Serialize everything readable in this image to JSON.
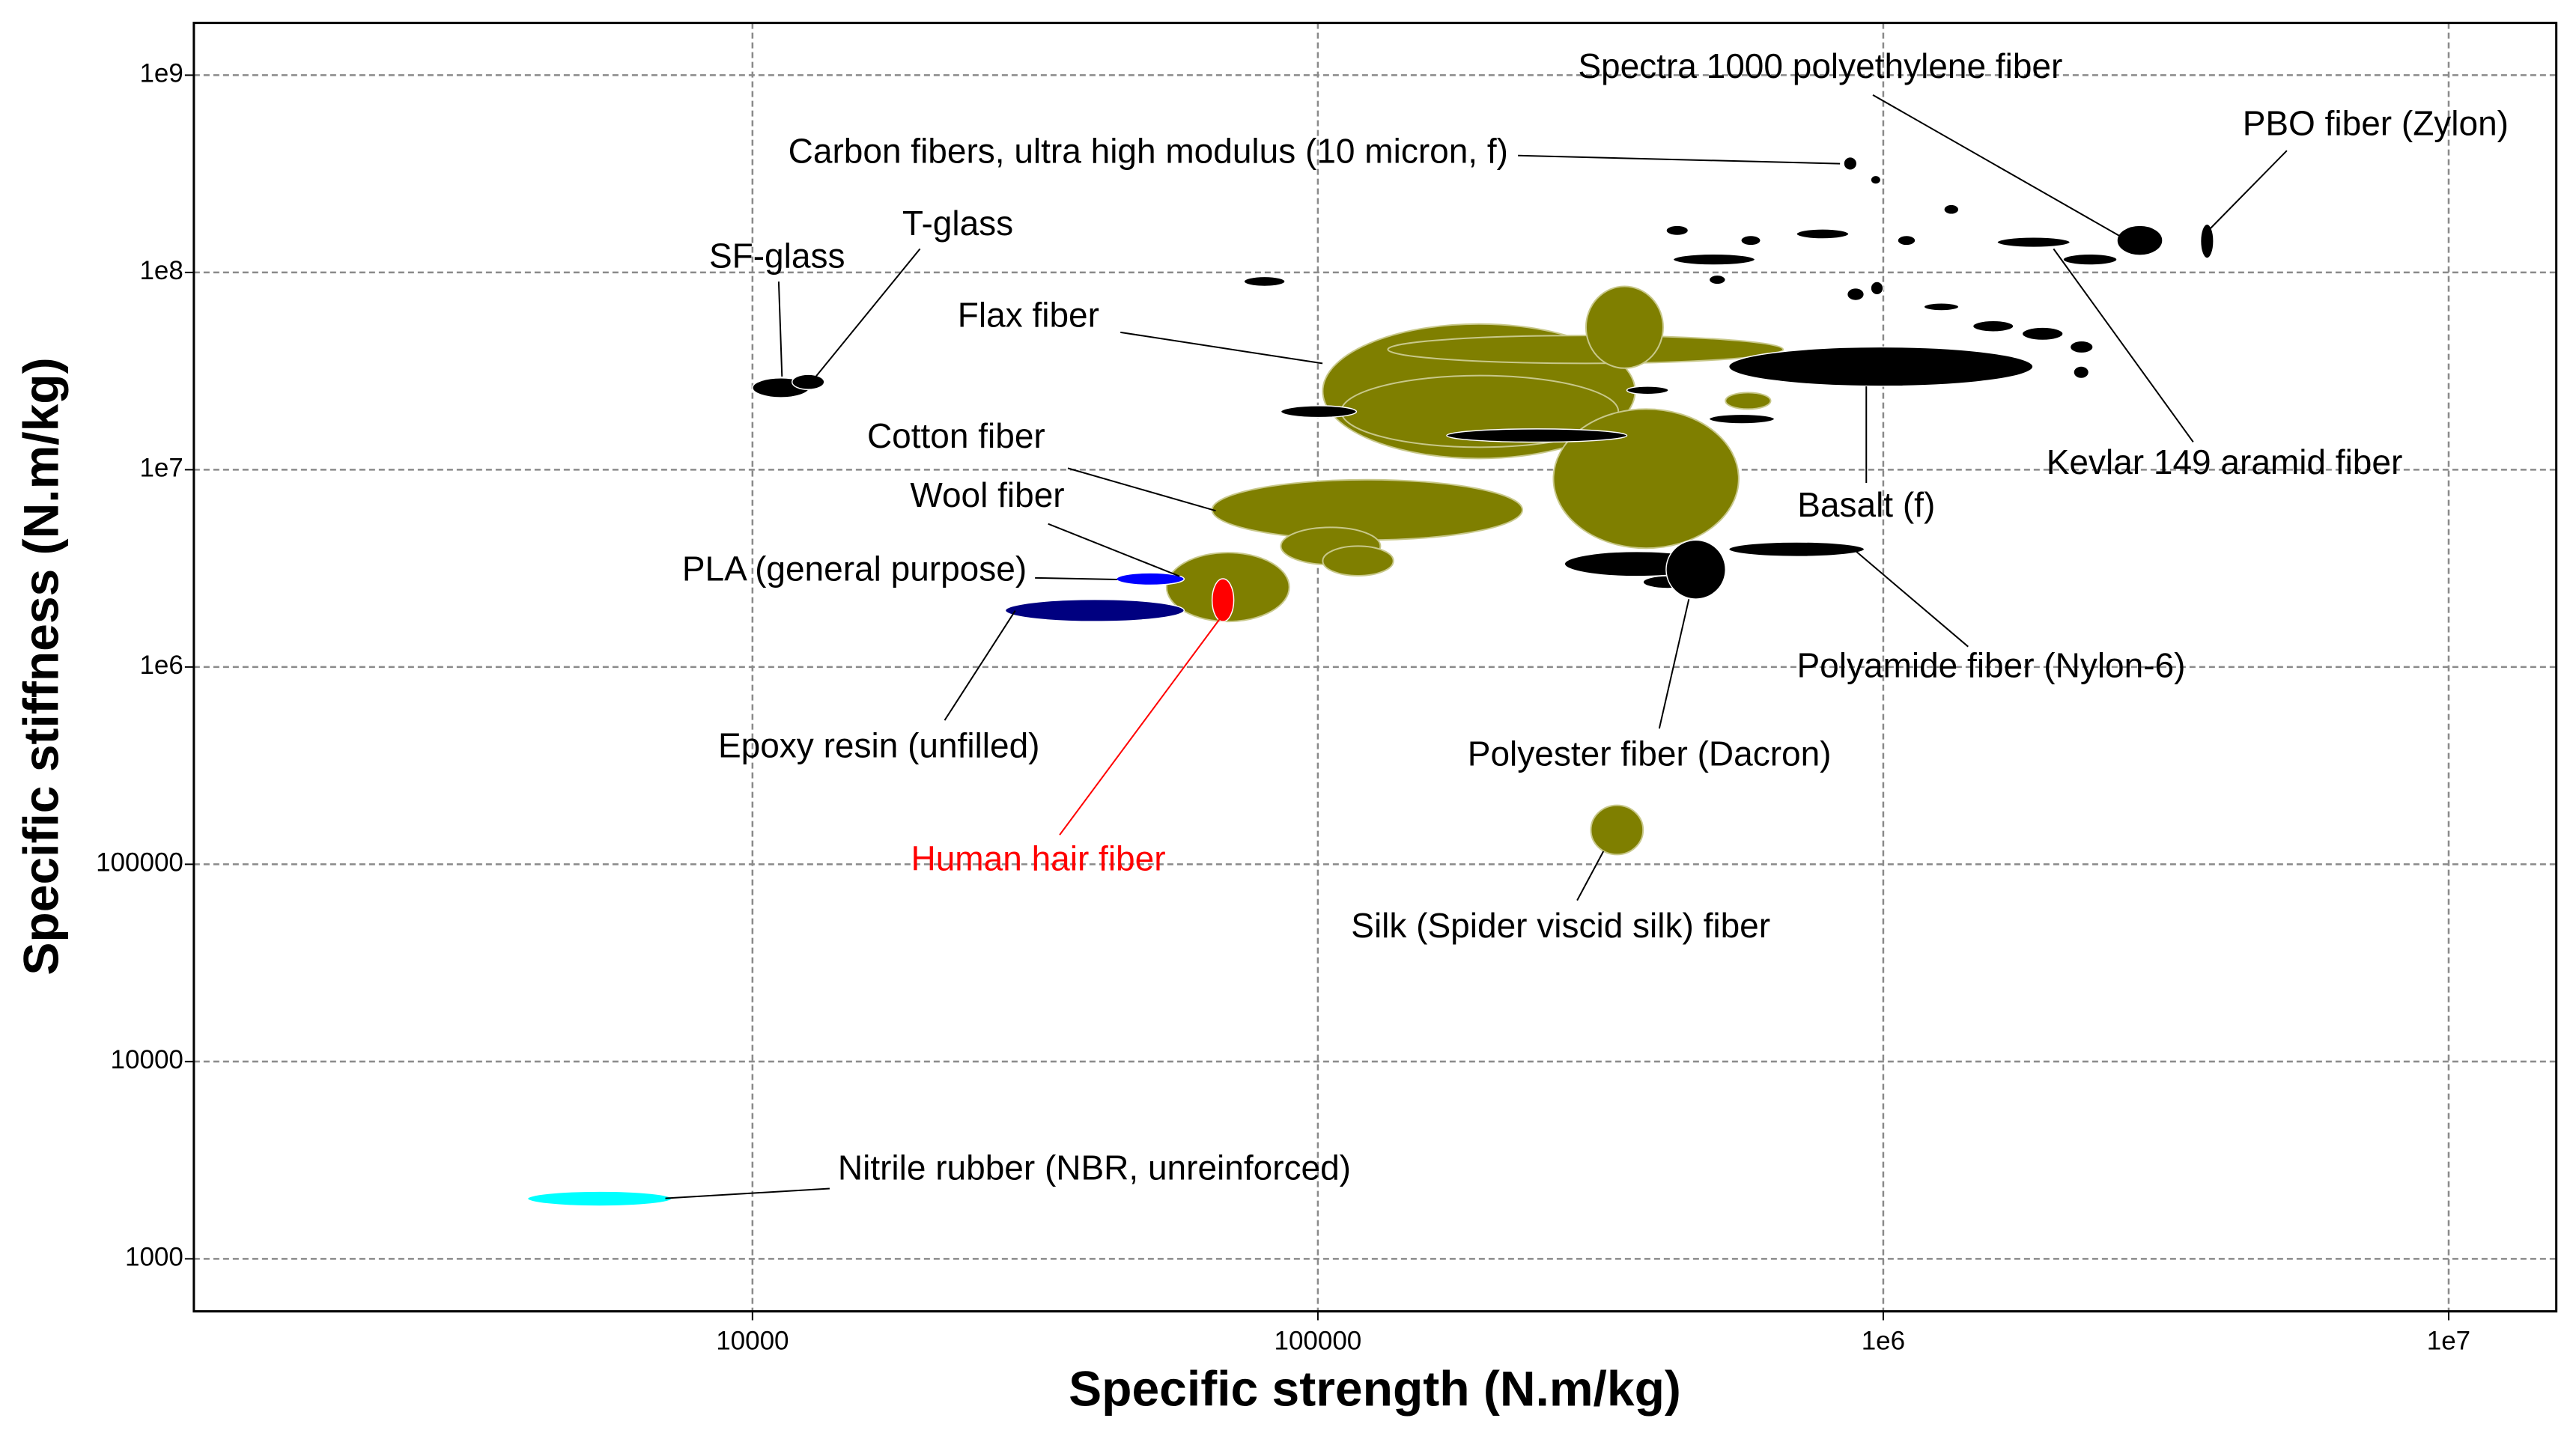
{
  "chart_data": {
    "type": "ellipse_scatter",
    "xlabel": "Specific strength (N.m/kg)",
    "ylabel": "Specific stiffness (N.m/kg)",
    "xscale": "log",
    "yscale": "log",
    "grid": true,
    "xlim": [
      1028,
      15500000
    ],
    "ylim": [
      542,
      1840000000
    ],
    "xticks": [
      10000,
      100000,
      {
        "value": 1000000,
        "label": "1e6"
      },
      {
        "value": 10000000,
        "label": "1e7"
      }
    ],
    "yticks": [
      1000,
      10000,
      100000,
      {
        "value": 1000000,
        "label": "1e6"
      },
      {
        "value": 10000000,
        "label": "1e7"
      },
      {
        "value": 100000000,
        "label": "1e8"
      },
      {
        "value": 1000000000,
        "label": "1e9"
      }
    ],
    "materials": [
      {
        "name": "Cotton fiber",
        "color": "#7f7f00",
        "x": [
          65000,
          230000
        ],
        "y": [
          4400000,
          8900000
        ]
      },
      {
        "color": "#7f7f00",
        "x": [
          86000,
          129000
        ],
        "y": [
          3300000,
          5100000
        ]
      },
      {
        "color": "#7f7f00",
        "x": [
          102000,
          136000
        ],
        "y": [
          2900000,
          4100000
        ]
      },
      {
        "name": "Flax fiber",
        "color": "#7f7f00",
        "x": [
          102000,
          364000
        ],
        "y": [
          11400000,
          54800000
        ]
      },
      {
        "color": "#7f7f00",
        "x": [
          110000,
          340000
        ],
        "y": [
          13000000,
          30000000
        ]
      },
      {
        "color": "#7f7f00",
        "x": [
          133000,
          665000
        ],
        "y": [
          34600000,
          47900000
        ]
      },
      {
        "color": "#7f7f00",
        "x": [
          298000,
          408000
        ],
        "y": [
          32700000,
          85000000
        ]
      },
      {
        "color": "#7f7f00",
        "x": [
          261000,
          555000
        ],
        "y": [
          4000000,
          20300000
        ]
      },
      {
        "color": "#7f7f00",
        "x": [
          526000,
          632000
        ],
        "y": [
          20300000,
          24600000
        ]
      },
      {
        "name": "Silk (Spider viscid silk) fiber",
        "color": "#7f7f00",
        "x": [
          304000,
          376000
        ],
        "y": [
          112000,
          199000
        ]
      },
      {
        "name": "Wool fiber",
        "color": "#7f7f00",
        "x": [
          54000,
          89000
        ],
        "y": [
          1700000,
          3800000
        ]
      },
      {
        "name": "Human hair fiber",
        "color": "#ff0000",
        "label_color": "#ff0000",
        "x": [
          65000,
          71000
        ],
        "y": [
          1700000,
          2800000
        ]
      },
      {
        "name": "PLA (general purpose)",
        "color": "#0000ff",
        "x": [
          44000,
          58000
        ],
        "y": [
          2600000,
          3000000
        ]
      },
      {
        "name": "Epoxy resin (unfilled)",
        "color": "#000080",
        "x": [
          28000,
          58000
        ],
        "y": [
          1700000,
          2200000
        ]
      },
      {
        "name": "Nitrile rubber (NBR, unreinforced)",
        "color": "#00ffff",
        "x": [
          4000,
          7200
        ],
        "y": [
          1850,
          2200
        ]
      },
      {
        "name": "SF-glass",
        "color": "#000000",
        "x": [
          10000,
          12600
        ],
        "y": [
          23200000,
          29200000
        ]
      },
      {
        "name": "T-glass",
        "color": "#000000",
        "x": [
          11750,
          13400
        ],
        "y": [
          25500000,
          30400000
        ]
      },
      {
        "name": "Carbon fibers, ultra high modulus (10 micron, f)",
        "color": "#000000",
        "x": [
          851000,
          898000
        ],
        "y": [
          330000000,
          385000000
        ]
      },
      {
        "name": "Spectra 1000 polyethylene fiber",
        "color": "#000000",
        "x": [
          2590000,
          3120000
        ],
        "y": [
          122000000,
          173000000
        ]
      },
      {
        "name": "PBO fiber (Zylon)",
        "color": "#000000",
        "x": [
          3640000,
          3840000
        ],
        "y": [
          118000000,
          176000000
        ]
      },
      {
        "name": "Kevlar 149 aramid fiber",
        "color": "#000000",
        "x": [
          1590000,
          2140000
        ],
        "y": [
          134000000,
          151000000
        ]
      },
      {
        "name": "Basalt (f)",
        "color": "#000000",
        "x": [
          533000,
          1840000
        ],
        "y": [
          26500000,
          41900000
        ]
      },
      {
        "name": "Polyamide fiber (Nylon-6)",
        "color": "#000000",
        "x": [
          533000,
          926000
        ],
        "y": [
          3630000,
          4300000
        ]
      },
      {
        "color": "#000000",
        "x": [
          273000,
          492000
        ],
        "y": [
          2880000,
          3850000
        ]
      },
      {
        "color": "#000000",
        "x": [
          376000,
          459000
        ],
        "y": [
          2500000,
          2900000
        ]
      },
      {
        "name": "Polyester fiber (Dacron)",
        "color": "#000000",
        "x": [
          413000,
          526000
        ],
        "y": [
          2210000,
          4400000
        ]
      },
      {
        "color": "#000000",
        "x": [
          74000,
          87500
        ],
        "y": [
          85000000,
          95300000
        ]
      },
      {
        "color": "#000000",
        "x": [
          86000,
          117000
        ],
        "y": [
          18400000,
          21100000
        ]
      },
      {
        "color": "#000000",
        "x": [
          169000,
          352000
        ],
        "y": [
          13800000,
          16100000
        ]
      },
      {
        "color": "#000000",
        "x": [
          425000,
          593000
        ],
        "y": [
          109000000,
          124000000
        ]
      },
      {
        "color": "#000000",
        "x": [
          702000,
          869000
        ],
        "y": [
          148000000,
          166000000
        ]
      },
      {
        "color": "#000000",
        "x": [
          492000,
          642000
        ],
        "y": [
          17100000,
          19100000
        ]
      },
      {
        "color": "#000000",
        "x": [
          352000,
          417000
        ],
        "y": [
          24100000,
          26500000
        ]
      },
      {
        "color": "#000000",
        "x": [
          2080000,
          2590000
        ],
        "y": [
          109000000,
          124000000
        ]
      },
      {
        "color": "#000000",
        "x": [
          1760000,
          2080000
        ],
        "y": [
          45300000,
          52700000
        ]
      },
      {
        "color": "#000000",
        "x": [
          1180000,
          1360000
        ],
        "y": [
          64000000,
          70000000
        ]
      },
      {
        "color": "#000000",
        "x": [
          413000,
          452000
        ],
        "y": [
          154000000,
          173000000
        ]
      },
      {
        "color": "#000000",
        "x": [
          1280000,
          1360000
        ],
        "y": [
          197000000,
          221000000
        ]
      },
      {
        "color": "#000000",
        "x": [
          1060000,
          1140000
        ],
        "y": [
          137000000,
          154000000
        ]
      },
      {
        "color": "#000000",
        "x": [
          863000,
          925000
        ],
        "y": [
          72000000,
          83400000
        ]
      },
      {
        "color": "#000000",
        "x": [
          950000,
          1000000
        ],
        "y": [
          77000000,
          90000000
        ]
      },
      {
        "color": "#000000",
        "x": [
          492000,
          526000
        ],
        "y": [
          87000000,
          97000000
        ]
      },
      {
        "color": "#000000",
        "x": [
          2140000,
          2350000
        ],
        "y": [
          39000000,
          45000000
        ]
      },
      {
        "color": "#000000",
        "x": [
          2170000,
          2310000
        ],
        "y": [
          29000000,
          33500000
        ]
      },
      {
        "color": "#000000",
        "x": [
          1440000,
          1700000
        ],
        "y": [
          50000000,
          57000000
        ]
      },
      {
        "color": "#000000",
        "x": [
          560000,
          607000
        ],
        "y": [
          137000000,
          154000000
        ]
      },
      {
        "color": "#000000",
        "x": [
          950000,
          990000
        ],
        "y": [
          280000000,
          310000000
        ]
      }
    ]
  }
}
